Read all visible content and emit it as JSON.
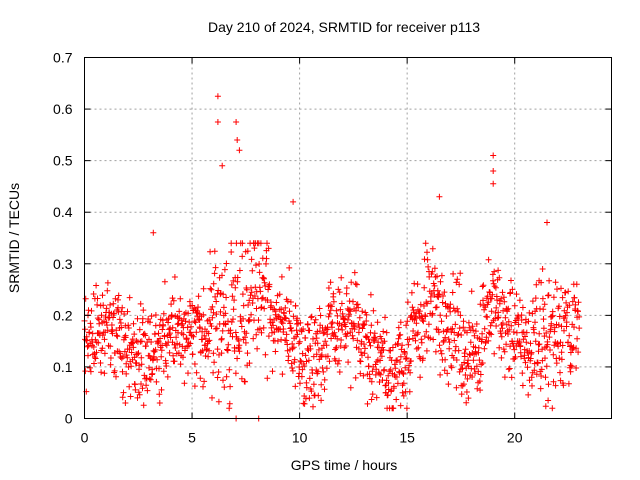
{
  "chart_data": {
    "type": "scatter",
    "title": "Day 210 of 2024, SRMTID for receiver p113",
    "xlabel": "GPS time / hours",
    "ylabel": "SRMTID / TECUs",
    "xlim": [
      0,
      24.5
    ],
    "ylim": [
      0,
      0.7
    ],
    "xticks": [
      0,
      5,
      10,
      15,
      20
    ],
    "xtick_labels": [
      "0",
      "5",
      "10",
      "15",
      "20"
    ],
    "yticks": [
      0,
      0.1,
      0.2,
      0.3,
      0.4,
      0.5,
      0.6,
      0.7
    ],
    "ytick_labels": [
      "0",
      "0.1",
      "0.2",
      "0.3",
      "0.4",
      "0.5",
      "0.6",
      "0.7"
    ],
    "grid": true,
    "marker": "+",
    "color": "#ff0000",
    "series": [
      {
        "name": "SRMTID",
        "x_range": [
          0.0,
          23.0
        ],
        "typical_band": [
          0.06,
          0.3
        ],
        "notable_points": [
          {
            "x": 6.2,
            "y": 0.625
          },
          {
            "x": 6.2,
            "y": 0.575
          },
          {
            "x": 7.05,
            "y": 0.575
          },
          {
            "x": 7.1,
            "y": 0.54
          },
          {
            "x": 7.2,
            "y": 0.52
          },
          {
            "x": 6.4,
            "y": 0.49
          },
          {
            "x": 19.0,
            "y": 0.51
          },
          {
            "x": 19.0,
            "y": 0.48
          },
          {
            "x": 19.0,
            "y": 0.455
          },
          {
            "x": 16.5,
            "y": 0.43
          },
          {
            "x": 9.7,
            "y": 0.42
          },
          {
            "x": 3.2,
            "y": 0.36
          },
          {
            "x": 21.5,
            "y": 0.38
          },
          {
            "x": 7.05,
            "y": 0.0
          },
          {
            "x": 8.1,
            "y": 0.0
          },
          {
            "x": 1.9,
            "y": 0.03
          },
          {
            "x": 3.5,
            "y": 0.03
          },
          {
            "x": 14.7,
            "y": 0.025
          },
          {
            "x": 11.0,
            "y": 0.035
          }
        ]
      }
    ]
  }
}
